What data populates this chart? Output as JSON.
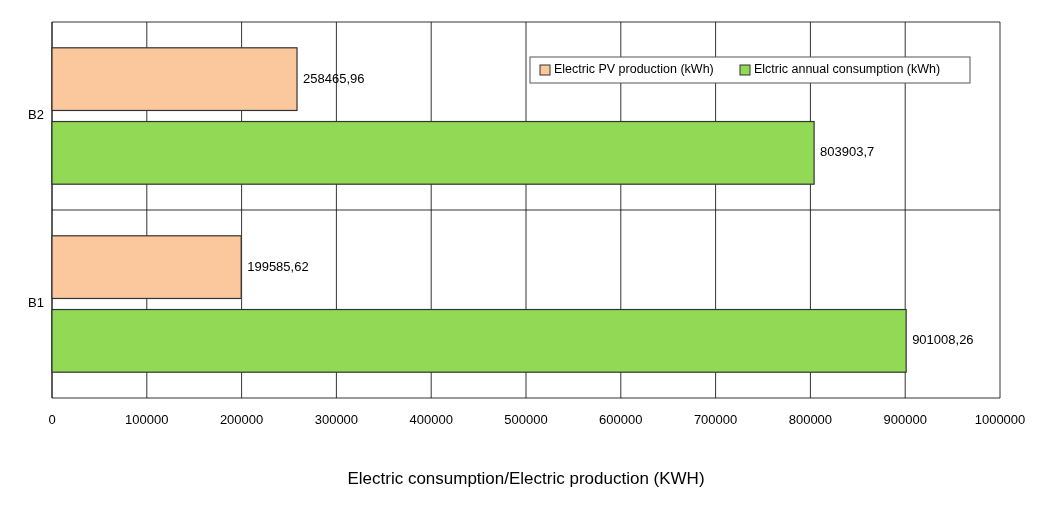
{
  "chart_data": {
    "type": "bar",
    "orientation": "horizontal",
    "xlabel": "Electric consumption/Electric production (KWH)",
    "categories": [
      "B2",
      "B1"
    ],
    "series": [
      {
        "name": "Electric PV production (kWh)",
        "color": "#fac89c",
        "values": [
          258465.96,
          199585.62
        ],
        "value_labels": [
          "258465,96",
          "199585,62"
        ]
      },
      {
        "name": "Elctric annual consumption (kWh)",
        "color": "#92d955",
        "values": [
          803903.7,
          901008.26
        ],
        "value_labels": [
          "803903,7",
          "901008,26"
        ]
      }
    ],
    "xlim": [
      0,
      1000000
    ],
    "xticks": [
      0,
      100000,
      200000,
      300000,
      400000,
      500000,
      600000,
      700000,
      800000,
      900000,
      1000000
    ],
    "grid": true,
    "legend": "top right"
  }
}
